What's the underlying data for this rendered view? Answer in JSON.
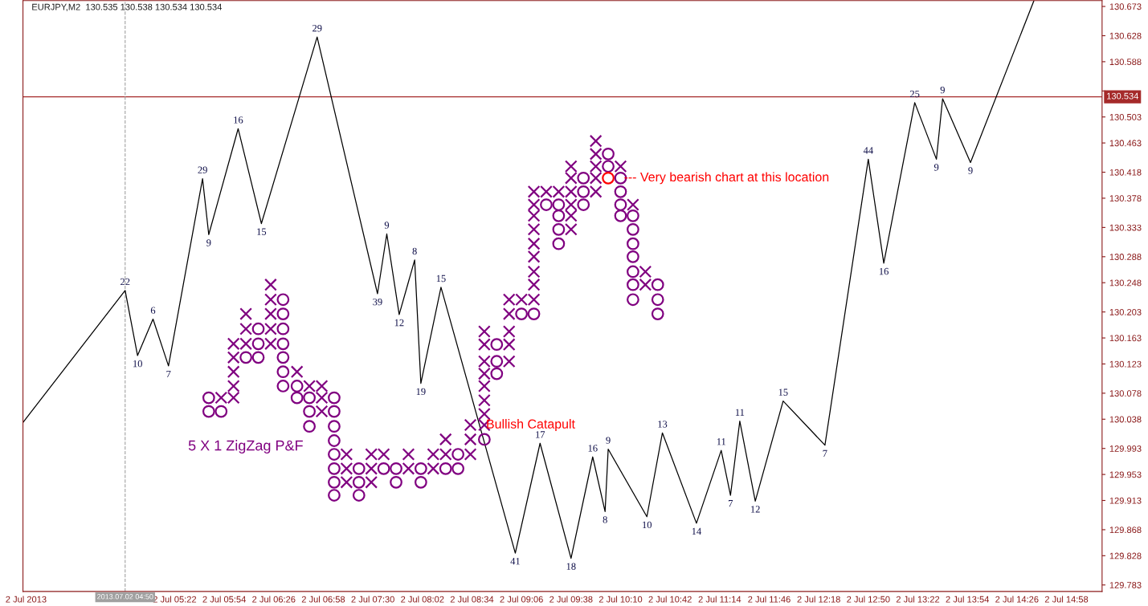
{
  "chart_data": {
    "type": "line",
    "title": "EURJPY,M2  130.535 130.538 130.534 130.534",
    "xlim": [
      "2013-07-02T03:44",
      "2013-07-02T15:21"
    ],
    "ylim": [
      129.773,
      130.682
    ],
    "xticks": [
      {
        "value": "2013-07-02T03:46",
        "label": "2 Jul 2013"
      },
      {
        "value": "2013-07-02T05:22",
        "label": "2 Jul 05:22"
      },
      {
        "value": "2013-07-02T05:54",
        "label": "2 Jul 05:54"
      },
      {
        "value": "2013-07-02T06:26",
        "label": "2 Jul 06:26"
      },
      {
        "value": "2013-07-02T06:58",
        "label": "2 Jul 06:58"
      },
      {
        "value": "2013-07-02T07:30",
        "label": "2 Jul 07:30"
      },
      {
        "value": "2013-07-02T08:02",
        "label": "2 Jul 08:02"
      },
      {
        "value": "2013-07-02T08:34",
        "label": "2 Jul 08:34"
      },
      {
        "value": "2013-07-02T09:06",
        "label": "2 Jul 09:06"
      },
      {
        "value": "2013-07-02T09:38",
        "label": "2 Jul 09:38"
      },
      {
        "value": "2013-07-02T10:10",
        "label": "2 Jul 10:10"
      },
      {
        "value": "2013-07-02T10:42",
        "label": "2 Jul 10:42"
      },
      {
        "value": "2013-07-02T11:14",
        "label": "2 Jul 11:14"
      },
      {
        "value": "2013-07-02T11:46",
        "label": "2 Jul 11:46"
      },
      {
        "value": "2013-07-02T12:18",
        "label": "2 Jul 12:18"
      },
      {
        "value": "2013-07-02T12:50",
        "label": "2 Jul 12:50"
      },
      {
        "value": "2013-07-02T13:22",
        "label": "2 Jul 13:22"
      },
      {
        "value": "2013-07-02T13:54",
        "label": "2 Jul 13:54"
      },
      {
        "value": "2013-07-02T14:26",
        "label": "2 Jul 14:26"
      },
      {
        "value": "2013-07-02T14:58",
        "label": "2 Jul 14:58"
      }
    ],
    "yticks": [
      130.673,
      130.628,
      130.588,
      {
        "value": 130.543,
        "label": null
      },
      130.503,
      130.463,
      130.418,
      130.378,
      130.333,
      130.288,
      130.248,
      130.203,
      130.163,
      130.123,
      130.078,
      130.038,
      129.993,
      129.953,
      129.913,
      129.868,
      129.828,
      129.783
    ],
    "ref_lines": [
      {
        "axis": "y",
        "value": 130.534,
        "label": "130.534",
        "color": "#a52a2a"
      },
      {
        "axis": "x",
        "value": "2013-07-02T04:50",
        "label": "2013.07.02 04:50",
        "color": "#a0a0a0",
        "line_style": "dashed"
      }
    ],
    "annotations": [
      "5 X 1 ZigZag P&F",
      {
        "text": "Bullish Catapult",
        "x": "2013-07-02T08:33",
        "y": 130.029
      },
      {
        "text": "--- Very bearish chart at this location",
        "x": "2013-07-02T10:02",
        "y": 130.409
      },
      {
        "text": "22",
        "x": "2013-07-02T04:50",
        "y": 130.236
      },
      {
        "text": "10",
        "x": "2013-07-02T04:58",
        "y": 130.136
      },
      {
        "text": "6",
        "x": "2013-07-02T05:08",
        "y": 130.192
      },
      {
        "text": "7",
        "x": "2013-07-02T05:18",
        "y": 130.12
      },
      {
        "text": "29",
        "x": "2013-07-02T05:40",
        "y": 130.408
      },
      {
        "text": "9",
        "x": "2013-07-02T05:44",
        "y": 130.322
      },
      {
        "text": "16",
        "x": "2013-07-02T06:03",
        "y": 130.485
      },
      {
        "text": "15",
        "x": "2013-07-02T06:18",
        "y": 130.339
      },
      {
        "text": "29",
        "x": "2013-07-02T06:54",
        "y": 130.626
      },
      {
        "text": "39",
        "x": "2013-07-02T07:33",
        "y": 130.231
      },
      {
        "text": "9",
        "x": "2013-07-02T07:39",
        "y": 130.323
      },
      {
        "text": "12",
        "x": "2013-07-02T07:47",
        "y": 130.199
      },
      {
        "text": "8",
        "x": "2013-07-02T07:57",
        "y": 130.283
      },
      {
        "text": "19",
        "x": "2013-07-02T08:01",
        "y": 130.093
      },
      {
        "text": "15",
        "x": "2013-07-02T08:14",
        "y": 130.241
      },
      {
        "text": "41",
        "x": "2013-07-02T09:02",
        "y": 129.832
      },
      {
        "text": "17",
        "x": "2013-07-02T09:18",
        "y": 130.001
      },
      {
        "text": "18",
        "x": "2013-07-02T09:38",
        "y": 129.824
      },
      {
        "text": "16",
        "x": "2013-07-02T09:52",
        "y": 129.98
      },
      {
        "text": "8",
        "x": "2013-07-02T10:00",
        "y": 129.896
      },
      {
        "text": "9",
        "x": "2013-07-02T10:02",
        "y": 129.992
      },
      {
        "text": "10",
        "x": "2013-07-02T10:27",
        "y": 129.888
      },
      {
        "text": "13",
        "x": "2013-07-02T10:37",
        "y": 130.017
      },
      {
        "text": "14",
        "x": "2013-07-02T10:59",
        "y": 129.878
      },
      {
        "text": "11",
        "x": "2013-07-02T11:15",
        "y": 129.99
      },
      {
        "text": "7",
        "x": "2013-07-02T11:21",
        "y": 129.921
      },
      {
        "text": "11",
        "x": "2013-07-02T11:27",
        "y": 130.035
      },
      {
        "text": "12",
        "x": "2013-07-02T11:37",
        "y": 129.912
      },
      {
        "text": "15",
        "x": "2013-07-02T11:55",
        "y": 130.066
      },
      {
        "text": "7",
        "x": "2013-07-02T12:22",
        "y": 129.998
      },
      {
        "text": "44",
        "x": "2013-07-02T12:50",
        "y": 130.438
      },
      {
        "text": "16",
        "x": "2013-07-02T13:00",
        "y": 130.278
      },
      {
        "text": "25",
        "x": "2013-07-02T13:20",
        "y": 130.525
      },
      {
        "text": "9",
        "x": "2013-07-02T13:34",
        "y": 130.438
      },
      {
        "text": "9",
        "x": "2013-07-02T13:38",
        "y": 130.531
      },
      {
        "text": "9",
        "x": "2013-07-02T13:56",
        "y": 130.433
      }
    ],
    "series": [
      {
        "color": "#000000",
        "line_style": "solid",
        "x": [
          "2013-07-02T03:44",
          "2013-07-02T04:50",
          "2013-07-02T04:58",
          "2013-07-02T05:08",
          "2013-07-02T05:18",
          "2013-07-02T05:40",
          "2013-07-02T05:44",
          "2013-07-02T06:03",
          "2013-07-02T06:18",
          "2013-07-02T06:54",
          "2013-07-02T07:33",
          "2013-07-02T07:39",
          "2013-07-02T07:47",
          "2013-07-02T07:57",
          "2013-07-02T08:01",
          "2013-07-02T08:14",
          "2013-07-02T09:02",
          "2013-07-02T09:18",
          "2013-07-02T09:38",
          "2013-07-02T09:52",
          "2013-07-02T10:00",
          "2013-07-02T10:02",
          "2013-07-02T10:27",
          "2013-07-02T10:37",
          "2013-07-02T10:59",
          "2013-07-02T11:15",
          "2013-07-02T11:21",
          "2013-07-02T11:27",
          "2013-07-02T11:37",
          "2013-07-02T11:55",
          "2013-07-02T12:22",
          "2013-07-02T12:50",
          "2013-07-02T13:00",
          "2013-07-02T13:20",
          "2013-07-02T13:34",
          "2013-07-02T13:38",
          "2013-07-02T13:56",
          "2013-07-02T14:37"
        ],
        "values": [
          130.033,
          130.236,
          130.136,
          130.192,
          130.12,
          130.408,
          130.322,
          130.485,
          130.339,
          130.626,
          130.231,
          130.323,
          130.199,
          130.283,
          130.093,
          130.241,
          129.832,
          130.001,
          129.824,
          129.98,
          129.896,
          129.992,
          129.888,
          130.017,
          129.878,
          129.99,
          129.921,
          130.035,
          129.912,
          130.066,
          129.998,
          130.438,
          130.278,
          130.525,
          130.438,
          130.531,
          130.433,
          130.682
        ]
      },
      {
        "type": "scatter",
        "marker": "cross",
        "color": "#800080",
        "x": [
          "2013-07-02T05:52",
          "2013-07-02T06:00",
          "2013-07-02T06:00",
          "2013-07-02T06:00",
          "2013-07-02T06:00",
          "2013-07-02T06:00",
          "2013-07-02T06:08",
          "2013-07-02T06:08",
          "2013-07-02T06:08",
          "2013-07-02T06:24",
          "2013-07-02T06:24",
          "2013-07-02T06:24",
          "2013-07-02T06:24",
          "2013-07-02T06:24",
          "2013-07-02T06:41",
          "2013-07-02T06:49",
          "2013-07-02T06:57",
          "2013-07-02T06:57",
          "2013-07-02T06:57",
          "2013-07-02T07:13",
          "2013-07-02T07:13",
          "2013-07-02T07:13",
          "2013-07-02T07:29",
          "2013-07-02T07:29",
          "2013-07-02T07:29",
          "2013-07-02T07:37",
          "2013-07-02T07:53",
          "2013-07-02T07:53",
          "2013-07-02T08:09",
          "2013-07-02T08:09",
          "2013-07-02T08:17",
          "2013-07-02T08:17",
          "2013-07-02T08:33",
          "2013-07-02T08:33",
          "2013-07-02T08:33",
          "2013-07-02T08:42",
          "2013-07-02T08:42",
          "2013-07-02T08:42",
          "2013-07-02T08:42",
          "2013-07-02T08:42",
          "2013-07-02T08:42",
          "2013-07-02T08:42",
          "2013-07-02T08:42",
          "2013-07-02T08:58",
          "2013-07-02T08:58",
          "2013-07-02T08:58",
          "2013-07-02T08:58",
          "2013-07-02T08:58",
          "2013-07-02T09:06",
          "2013-07-02T09:14",
          "2013-07-02T09:14",
          "2013-07-02T09:14",
          "2013-07-02T09:14",
          "2013-07-02T09:14",
          "2013-07-02T09:14",
          "2013-07-02T09:14",
          "2013-07-02T09:14",
          "2013-07-02T09:14",
          "2013-07-02T09:22",
          "2013-07-02T09:30",
          "2013-07-02T09:38",
          "2013-07-02T09:38",
          "2013-07-02T09:38",
          "2013-07-02T09:38",
          "2013-07-02T09:38",
          "2013-07-02T09:38",
          "2013-07-02T09:54",
          "2013-07-02T09:54",
          "2013-07-02T09:54",
          "2013-07-02T09:54",
          "2013-07-02T09:54",
          "2013-07-02T10:10",
          "2013-07-02T10:18",
          "2013-07-02T10:26",
          "2013-07-02T10:26"
        ],
        "values": [
          130.071,
          130.154,
          130.133,
          130.111,
          130.089,
          130.071,
          130.2,
          130.177,
          130.154,
          130.245,
          130.222,
          130.2,
          130.177,
          130.154,
          130.111,
          130.089,
          130.089,
          130.071,
          130.05,
          129.984,
          129.962,
          129.941,
          129.984,
          129.962,
          129.941,
          129.984,
          129.984,
          129.962,
          129.984,
          129.962,
          130.007,
          129.984,
          130.029,
          130.007,
          129.984,
          130.173,
          130.153,
          130.127,
          130.108,
          130.089,
          130.067,
          130.046,
          130.029,
          130.222,
          130.2,
          130.173,
          130.153,
          130.127,
          130.222,
          130.388,
          130.368,
          130.351,
          130.33,
          130.308,
          130.288,
          130.265,
          130.245,
          130.222,
          130.388,
          130.388,
          130.427,
          130.409,
          130.388,
          130.368,
          130.351,
          130.33,
          130.466,
          130.446,
          130.427,
          130.409,
          130.388,
          130.427,
          130.368,
          130.265,
          130.245
        ]
      },
      {
        "type": "scatter",
        "marker": "circle",
        "x": [
          "2013-07-02T05:44",
          "2013-07-02T05:44",
          "2013-07-02T05:52",
          "2013-07-02T06:08",
          "2013-07-02T06:16",
          "2013-07-02T06:16",
          "2013-07-02T06:16",
          "2013-07-02T06:32",
          "2013-07-02T06:32",
          "2013-07-02T06:32",
          "2013-07-02T06:32",
          "2013-07-02T06:32",
          "2013-07-02T06:32",
          "2013-07-02T06:32",
          "2013-07-02T06:41",
          "2013-07-02T06:41",
          "2013-07-02T06:49",
          "2013-07-02T06:49",
          "2013-07-02T06:49",
          "2013-07-02T07:05",
          "2013-07-02T07:05",
          "2013-07-02T07:05",
          "2013-07-02T07:05",
          "2013-07-02T07:05",
          "2013-07-02T07:05",
          "2013-07-02T07:05",
          "2013-07-02T07:05",
          "2013-07-02T07:21",
          "2013-07-02T07:21",
          "2013-07-02T07:21",
          "2013-07-02T07:37",
          "2013-07-02T07:45",
          "2013-07-02T07:45",
          "2013-07-02T08:01",
          "2013-07-02T08:01",
          "2013-07-02T08:17",
          "2013-07-02T08:25",
          "2013-07-02T08:25",
          "2013-07-02T08:42",
          "2013-07-02T08:50",
          "2013-07-02T08:50",
          "2013-07-02T08:50",
          "2013-07-02T09:06",
          "2013-07-02T09:14",
          "2013-07-02T09:22",
          "2013-07-02T09:30",
          "2013-07-02T09:30",
          "2013-07-02T09:30",
          "2013-07-02T09:30",
          "2013-07-02T09:46",
          "2013-07-02T09:46",
          "2013-07-02T09:46",
          "2013-07-02T10:02",
          "2013-07-02T10:02",
          "2013-07-02T10:02",
          "2013-07-02T10:10",
          "2013-07-02T10:10",
          "2013-07-02T10:10",
          "2013-07-02T10:10",
          "2013-07-02T10:18",
          "2013-07-02T10:18",
          "2013-07-02T10:18",
          "2013-07-02T10:18",
          "2013-07-02T10:18",
          "2013-07-02T10:18",
          "2013-07-02T10:18",
          "2013-07-02T10:34",
          "2013-07-02T10:34",
          "2013-07-02T10:34"
        ],
        "values": [
          130.071,
          130.05,
          130.05,
          130.133,
          130.177,
          130.154,
          130.133,
          130.222,
          130.2,
          130.177,
          130.154,
          130.133,
          130.111,
          130.089,
          130.089,
          130.071,
          130.071,
          130.05,
          130.027,
          130.071,
          130.05,
          130.027,
          130.005,
          129.984,
          129.962,
          129.941,
          129.921,
          129.962,
          129.941,
          129.921,
          129.962,
          129.962,
          129.941,
          129.962,
          129.941,
          129.962,
          129.984,
          129.962,
          130.007,
          130.153,
          130.127,
          130.108,
          130.2,
          130.2,
          130.368,
          130.368,
          130.351,
          130.33,
          130.308,
          130.409,
          130.388,
          130.368,
          130.446,
          130.427,
          130.409,
          130.409,
          130.388,
          130.368,
          130.351,
          130.351,
          130.33,
          130.308,
          130.288,
          130.265,
          130.245,
          130.222,
          130.245,
          130.222,
          130.2
        ],
        "colors": [
          "#800080",
          "#800080",
          "#800080",
          "#800080",
          "#800080",
          "#800080",
          "#800080",
          "#800080",
          "#800080",
          "#800080",
          "#800080",
          "#800080",
          "#800080",
          "#800080",
          "#800080",
          "#800080",
          "#800080",
          "#800080",
          "#800080",
          "#800080",
          "#800080",
          "#800080",
          "#800080",
          "#800080",
          "#800080",
          "#800080",
          "#800080",
          "#800080",
          "#800080",
          "#800080",
          "#800080",
          "#800080",
          "#800080",
          "#800080",
          "#800080",
          "#800080",
          "#800080",
          "#800080",
          "#800080",
          "#800080",
          "#800080",
          "#800080",
          "#800080",
          "#800080",
          "#800080",
          "#800080",
          "#800080",
          "#800080",
          "#800080",
          "#800080",
          "#800080",
          "#800080",
          "#800080",
          "#800080",
          "#ff0000",
          "#800080",
          "#800080",
          "#800080",
          "#800080",
          "#800080",
          "#800080",
          "#800080",
          "#800080",
          "#800080",
          "#800080",
          "#800080",
          "#800080",
          "#800080",
          "#800080"
        ]
      }
    ]
  }
}
